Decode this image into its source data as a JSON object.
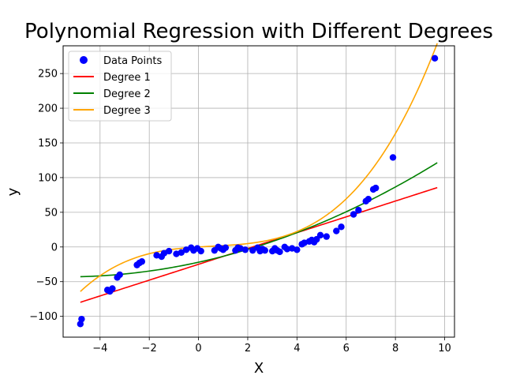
{
  "chart_data": {
    "type": "scatter",
    "title": "Polynomial Regression with Different Degrees",
    "xlabel": "X",
    "ylabel": "y",
    "xlim": [
      -5.5,
      10.4
    ],
    "ylim": [
      -130,
      290
    ],
    "x_ticks": [
      -4,
      -2,
      0,
      2,
      4,
      6,
      8,
      10
    ],
    "y_ticks": [
      -100,
      -50,
      0,
      50,
      100,
      150,
      200,
      250
    ],
    "x_tick_labels": [
      "−4",
      "−2",
      "0",
      "2",
      "4",
      "6",
      "8",
      "10"
    ],
    "y_tick_labels": [
      "−100",
      "−50",
      "0",
      "50",
      "100",
      "150",
      "200",
      "250"
    ],
    "grid": true,
    "legend_position": "upper-left",
    "points": {
      "name": "Data Points",
      "color": "#0000ff",
      "x": [
        -4.8,
        -4.75,
        -3.7,
        -3.6,
        -3.5,
        -3.3,
        -3.2,
        -2.5,
        -2.4,
        -2.3,
        -1.7,
        -1.5,
        -1.4,
        -1.2,
        -0.9,
        -0.7,
        -0.5,
        -0.3,
        -0.2,
        -0.05,
        0.1,
        0.65,
        0.8,
        0.9,
        1.0,
        1.1,
        1.5,
        1.6,
        1.7,
        1.9,
        2.2,
        2.4,
        2.5,
        2.6,
        2.7,
        3.0,
        3.1,
        3.2,
        3.3,
        3.5,
        3.6,
        3.8,
        4.0,
        4.2,
        4.3,
        4.5,
        4.6,
        4.7,
        4.8,
        4.95,
        5.2,
        5.6,
        5.8,
        6.3,
        6.5,
        6.8,
        6.9,
        7.1,
        7.2,
        7.9,
        9.6
      ],
      "y": [
        -111,
        -104,
        -62,
        -64,
        -60,
        -44,
        -40,
        -26,
        -23,
        -21,
        -12,
        -14,
        -9,
        -6,
        -10,
        -8,
        -4,
        -1,
        -5,
        -2,
        -6,
        -5,
        0,
        -2,
        -4,
        -1,
        -5,
        -1,
        -2,
        -4,
        -5,
        -1,
        -6,
        -3,
        -5,
        -6,
        -2,
        -5,
        -7,
        0,
        -3,
        -2,
        -4,
        4,
        6,
        8,
        10,
        7,
        11,
        17,
        15,
        23,
        29,
        47,
        53,
        66,
        69,
        83,
        85,
        129,
        272
      ]
    },
    "series": [
      {
        "name": "Degree 1",
        "color": "#ff0000",
        "coefficients": [
          -25,
          11.4
        ],
        "x_range": [
          -4.8,
          9.7
        ]
      },
      {
        "name": "Degree 2",
        "color": "#008000",
        "coefficients": [
          -22,
          7.8,
          0.72
        ],
        "x_range": [
          -4.8,
          9.7
        ]
      },
      {
        "name": "Degree 3",
        "color": "#ffa500",
        "coefficients": [
          0,
          2.2,
          -0.6,
          0.36
        ],
        "x_range": [
          -4.8,
          9.7
        ]
      }
    ]
  }
}
